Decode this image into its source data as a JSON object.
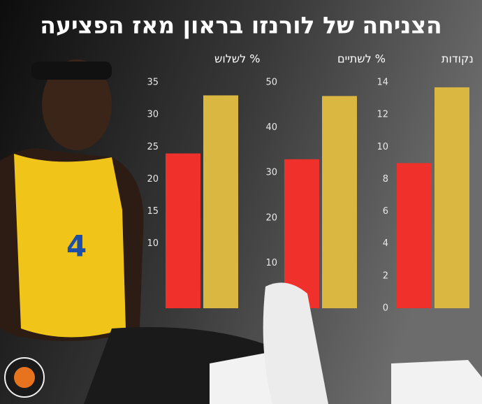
{
  "title": "הצניחה של לורנזו בראון מאז הפציעה",
  "chart_data": [
    {
      "type": "bar",
      "title": "נקודות",
      "values": [
        9,
        13.7
      ],
      "colors": [
        "#f0302a",
        "#d9b741"
      ],
      "ylim": [
        0,
        14
      ],
      "yticks": [
        0,
        2,
        4,
        6,
        8,
        10,
        12,
        14
      ]
    },
    {
      "type": "bar",
      "title": "% לשתיים",
      "values": [
        33,
        47
      ],
      "colors": [
        "#f0302a",
        "#d9b741"
      ],
      "ylim": [
        0,
        50
      ],
      "yticks": [
        10,
        20,
        30,
        40,
        50
      ]
    },
    {
      "type": "bar",
      "title": "% לשלוש",
      "values": [
        24,
        33
      ],
      "colors": [
        "#f0302a",
        "#d9b741"
      ],
      "ylim": [
        0,
        35
      ],
      "yticks": [
        10,
        15,
        20,
        25,
        30,
        35
      ]
    }
  ]
}
